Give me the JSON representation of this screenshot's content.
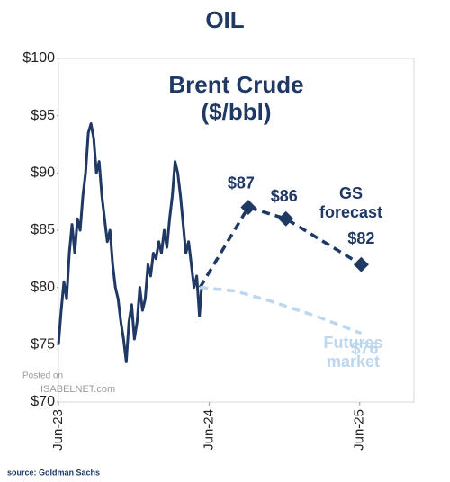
{
  "chart_data": {
    "type": "line",
    "title": "OIL",
    "subtitle": "Brent Crude ($/bbl)",
    "source": "source: Goldman Sachs",
    "watermark": [
      "Posted on",
      "ISABELNET.com"
    ],
    "xlim": [
      2023.42,
      2025.78
    ],
    "xticks": [
      {
        "value": 2023.42,
        "label": "Jun-23"
      },
      {
        "value": 2024.42,
        "label": "Jun-24"
      },
      {
        "value": 2025.42,
        "label": "Jun-25"
      }
    ],
    "ylim": [
      70,
      100
    ],
    "yticks": [
      {
        "value": 70,
        "label": "$70"
      },
      {
        "value": 75,
        "label": "$75"
      },
      {
        "value": 80,
        "label": "$80"
      },
      {
        "value": 85,
        "label": "$85"
      },
      {
        "value": 90,
        "label": "$90"
      },
      {
        "value": 95,
        "label": "$95"
      },
      {
        "value": 100,
        "label": "$100"
      }
    ],
    "grid": false,
    "series": [
      {
        "color": "#1f3864",
        "style": "solid",
        "x": [
          2023.42,
          2023.438,
          2023.456,
          2023.474,
          2023.492,
          2023.51,
          2023.528,
          2023.546,
          2023.564,
          2023.582,
          2023.6,
          2023.618,
          2023.636,
          2023.654,
          2023.672,
          2023.69,
          2023.708,
          2023.726,
          2023.744,
          2023.762,
          2023.78,
          2023.798,
          2023.816,
          2023.834,
          2023.852,
          2023.87,
          2023.888,
          2023.906,
          2023.924,
          2023.942,
          2023.96,
          2023.978,
          2023.996,
          2024.014,
          2024.032,
          2024.05,
          2024.068,
          2024.086,
          2024.104,
          2024.122,
          2024.14,
          2024.158,
          2024.176,
          2024.194,
          2024.212,
          2024.23,
          2024.248,
          2024.266,
          2024.284,
          2024.302,
          2024.32,
          2024.338,
          2024.356,
          2024.37
        ],
        "values": [
          75,
          78,
          80.5,
          79,
          83,
          85.5,
          83,
          86,
          85,
          88,
          90,
          93.5,
          94.3,
          93,
          90,
          91,
          88,
          86,
          84,
          85,
          82,
          80,
          79,
          77,
          75.5,
          73.5,
          77,
          78.5,
          75.5,
          77,
          80,
          78,
          79,
          82,
          81,
          83,
          82.5,
          84,
          83,
          85,
          83.5,
          86,
          88,
          91,
          90,
          88,
          85.5,
          83,
          84,
          82,
          80,
          81,
          77.5,
          80
        ]
      },
      {
        "name": "GS forecast",
        "color": "#1f3864",
        "style": "dashed",
        "marker": "diamond",
        "x": [
          2024.36,
          2024.68,
          2024.93,
          2025.43
        ],
        "values": [
          80,
          87,
          86,
          82
        ],
        "value_labels": [
          null,
          "$87",
          "$86",
          "$82"
        ]
      },
      {
        "name": "Futures market",
        "color": "#bdd7ee",
        "style": "dashed",
        "x": [
          2024.36,
          2024.59,
          2024.83,
          2025.13,
          2025.43
        ],
        "values": [
          80,
          79.7,
          78.8,
          77.5,
          76
        ],
        "value_labels": [
          null,
          null,
          null,
          null,
          "$76"
        ]
      }
    ]
  }
}
